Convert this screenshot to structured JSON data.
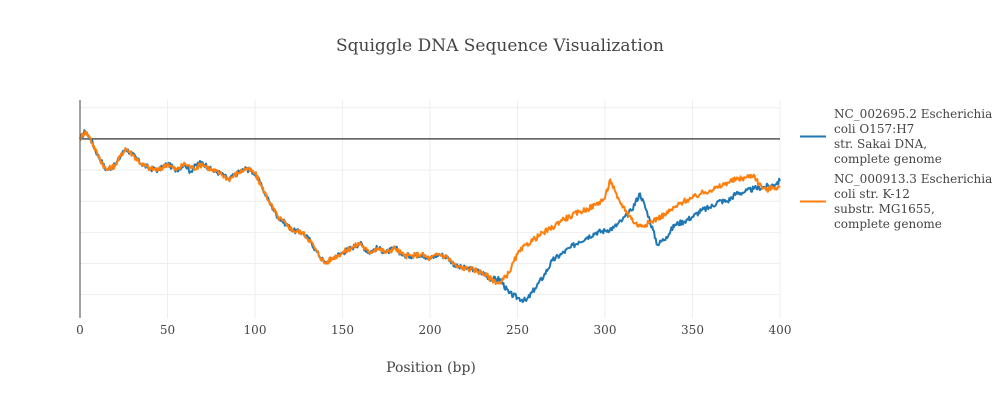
{
  "chart_data": {
    "type": "line",
    "title": "Squiggle DNA Sequence Visualization",
    "xlabel": "Position (bp)",
    "ylabel": "",
    "xlim": [
      0,
      400
    ],
    "ylim": [
      -11.5,
      2.5
    ],
    "x_ticks": [
      "0",
      "50",
      "100",
      "150",
      "200",
      "250",
      "300",
      "350",
      "400"
    ],
    "grid": true,
    "legend_position": "right",
    "zero_line": 0,
    "series": [
      {
        "name": "NC_002695.2 Escherichia coli O157:H7 str. Sakai DNA, complete genome",
        "legend_lines": [
          "NC_002695.2 Escherichia",
          "coli O157:H7",
          "str. Sakai DNA,",
          "complete genome"
        ],
        "color": "#1f77b4",
        "points": [
          [
            0,
            0
          ],
          [
            3,
            0.5
          ],
          [
            6,
            0
          ],
          [
            10,
            -1
          ],
          [
            15,
            -2
          ],
          [
            20,
            -1.7
          ],
          [
            26,
            -0.6
          ],
          [
            30,
            -1
          ],
          [
            35,
            -1.6
          ],
          [
            40,
            -1.9
          ],
          [
            45,
            -2
          ],
          [
            50,
            -1.6
          ],
          [
            55,
            -2
          ],
          [
            60,
            -1.6
          ],
          [
            63,
            -2.1
          ],
          [
            67,
            -1.6
          ],
          [
            70,
            -1.5
          ],
          [
            75,
            -2
          ],
          [
            80,
            -2.2
          ],
          [
            85,
            -2.6
          ],
          [
            90,
            -2.2
          ],
          [
            95,
            -1.9
          ],
          [
            100,
            -2.2
          ],
          [
            104,
            -3.1
          ],
          [
            108,
            -4
          ],
          [
            113,
            -5
          ],
          [
            118,
            -5.5
          ],
          [
            122,
            -5.9
          ],
          [
            127,
            -6
          ],
          [
            132,
            -6.6
          ],
          [
            135,
            -7.2
          ],
          [
            140,
            -8
          ],
          [
            145,
            -7.6
          ],
          [
            150,
            -7.3
          ],
          [
            155,
            -7
          ],
          [
            160,
            -6.7
          ],
          [
            165,
            -7.3
          ],
          [
            170,
            -7
          ],
          [
            175,
            -7.3
          ],
          [
            180,
            -7
          ],
          [
            185,
            -7.5
          ],
          [
            190,
            -7.5
          ],
          [
            195,
            -7.4
          ],
          [
            200,
            -7.7
          ],
          [
            205,
            -7.4
          ],
          [
            210,
            -7.6
          ],
          [
            215,
            -8.2
          ],
          [
            220,
            -8.3
          ],
          [
            225,
            -8.4
          ],
          [
            230,
            -8.6
          ],
          [
            235,
            -9
          ],
          [
            240,
            -9
          ],
          [
            245,
            -9.9
          ],
          [
            250,
            -10.2
          ],
          [
            255,
            -10.4
          ],
          [
            260,
            -9.6
          ],
          [
            265,
            -8.8
          ],
          [
            270,
            -7.8
          ],
          [
            275,
            -7.4
          ],
          [
            280,
            -7
          ],
          [
            285,
            -6.6
          ],
          [
            290,
            -6.3
          ],
          [
            295,
            -6
          ],
          [
            300,
            -5.9
          ],
          [
            305,
            -5.7
          ],
          [
            310,
            -5.2
          ],
          [
            315,
            -4.6
          ],
          [
            320,
            -3.5
          ],
          [
            325,
            -5
          ],
          [
            330,
            -6.8
          ],
          [
            335,
            -6.3
          ],
          [
            340,
            -5.5
          ],
          [
            345,
            -5.3
          ],
          [
            350,
            -5
          ],
          [
            355,
            -4.6
          ],
          [
            360,
            -4.4
          ],
          [
            365,
            -4
          ],
          [
            370,
            -4
          ],
          [
            375,
            -3.5
          ],
          [
            380,
            -3.4
          ],
          [
            385,
            -3.2
          ],
          [
            390,
            -3.1
          ],
          [
            395,
            -3
          ],
          [
            400,
            -2.7
          ]
        ]
      },
      {
        "name": "NC_000913.3 Escherichia coli str. K-12 substr. MG1655, complete genome",
        "legend_lines": [
          "NC_000913.3 Escherichia",
          "coli str. K-12",
          "substr. MG1655,",
          "complete genome"
        ],
        "color": "#ff7f0e",
        "points": [
          [
            0,
            0
          ],
          [
            3,
            0.5
          ],
          [
            6,
            0
          ],
          [
            10,
            -1
          ],
          [
            15,
            -2
          ],
          [
            20,
            -1.7
          ],
          [
            26,
            -0.6
          ],
          [
            30,
            -1
          ],
          [
            35,
            -1.6
          ],
          [
            40,
            -1.9
          ],
          [
            45,
            -2
          ],
          [
            50,
            -1.6
          ],
          [
            55,
            -2
          ],
          [
            60,
            -1.6
          ],
          [
            65,
            -1.9
          ],
          [
            70,
            -1.6
          ],
          [
            75,
            -2
          ],
          [
            80,
            -2.2
          ],
          [
            85,
            -2.6
          ],
          [
            90,
            -2.2
          ],
          [
            95,
            -1.9
          ],
          [
            100,
            -2.2
          ],
          [
            104,
            -3.1
          ],
          [
            108,
            -4
          ],
          [
            113,
            -5
          ],
          [
            118,
            -5.5
          ],
          [
            122,
            -5.9
          ],
          [
            127,
            -6
          ],
          [
            132,
            -6.6
          ],
          [
            135,
            -7.2
          ],
          [
            140,
            -8
          ],
          [
            145,
            -7.6
          ],
          [
            150,
            -7.3
          ],
          [
            155,
            -7
          ],
          [
            160,
            -6.7
          ],
          [
            165,
            -7.3
          ],
          [
            170,
            -7
          ],
          [
            175,
            -7.3
          ],
          [
            180,
            -7
          ],
          [
            185,
            -7.5
          ],
          [
            190,
            -7.5
          ],
          [
            195,
            -7.4
          ],
          [
            200,
            -7.7
          ],
          [
            205,
            -7.4
          ],
          [
            210,
            -7.6
          ],
          [
            215,
            -8.2
          ],
          [
            220,
            -8.3
          ],
          [
            225,
            -8.4
          ],
          [
            230,
            -8.6
          ],
          [
            235,
            -9
          ],
          [
            240,
            -9.3
          ],
          [
            245,
            -8.6
          ],
          [
            250,
            -7.4
          ],
          [
            255,
            -6.8
          ],
          [
            260,
            -6.4
          ],
          [
            265,
            -6
          ],
          [
            270,
            -5.7
          ],
          [
            275,
            -5.2
          ],
          [
            280,
            -5
          ],
          [
            285,
            -4.7
          ],
          [
            290,
            -4.5
          ],
          [
            295,
            -4.2
          ],
          [
            300,
            -3.8
          ],
          [
            303,
            -2.6
          ],
          [
            307,
            -3.8
          ],
          [
            312,
            -4.6
          ],
          [
            317,
            -5.4
          ],
          [
            320,
            -5.6
          ],
          [
            325,
            -5.4
          ],
          [
            330,
            -5.1
          ],
          [
            335,
            -4.8
          ],
          [
            340,
            -4.4
          ],
          [
            345,
            -4
          ],
          [
            350,
            -3.8
          ],
          [
            355,
            -3.5
          ],
          [
            360,
            -3.3
          ],
          [
            365,
            -3.1
          ],
          [
            370,
            -2.8
          ],
          [
            375,
            -2.6
          ],
          [
            380,
            -2.5
          ],
          [
            385,
            -2.3
          ],
          [
            388,
            -2.9
          ],
          [
            392,
            -3.3
          ],
          [
            396,
            -3.1
          ],
          [
            400,
            -3.1
          ]
        ]
      }
    ]
  }
}
